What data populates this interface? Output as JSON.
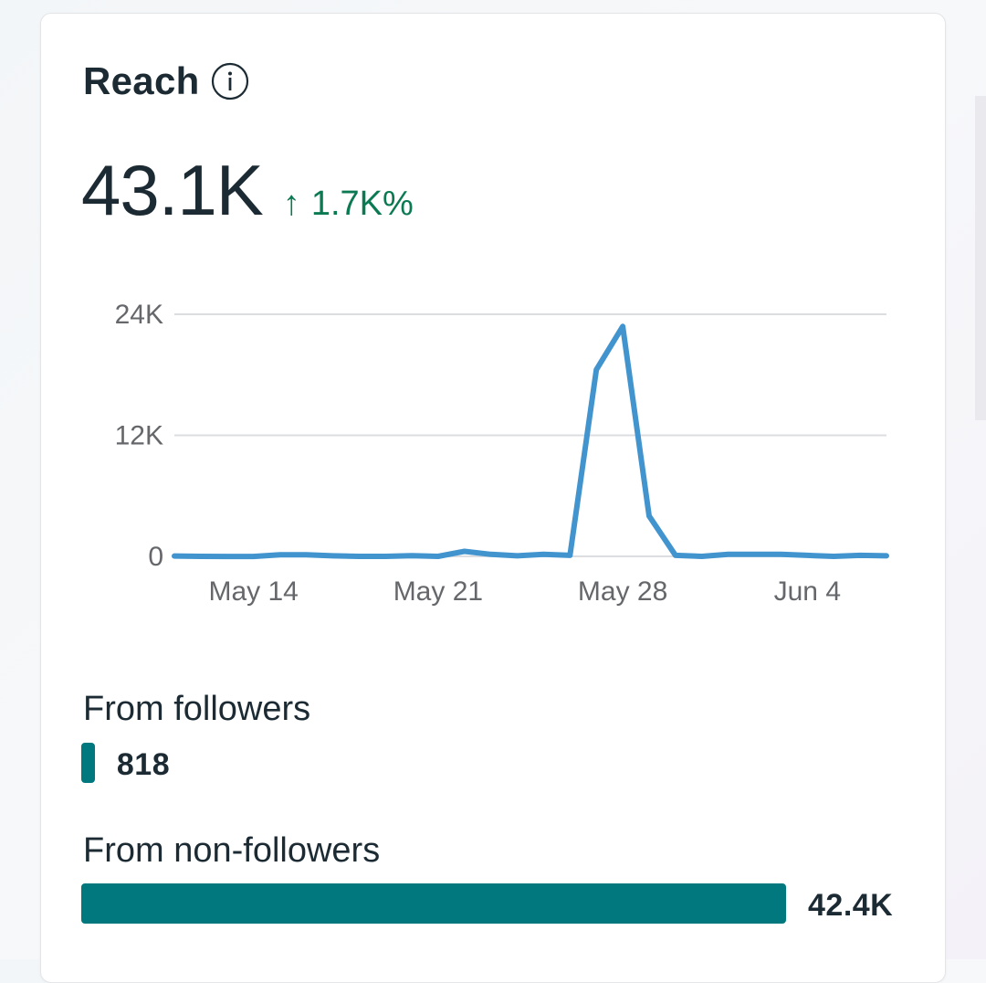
{
  "card": {
    "title": "Reach",
    "total": "43.1K",
    "change_arrow": "↑",
    "change_text": "1.7K%"
  },
  "chart_data": {
    "type": "line",
    "title": "",
    "xlabel": "",
    "ylabel": "",
    "ylim": [
      0,
      24000
    ],
    "y_ticks": [
      "0",
      "12K",
      "24K"
    ],
    "x_ticks": [
      "May 14",
      "May 21",
      "May 28",
      "Jun 4"
    ],
    "x": [
      "May 11",
      "May 12",
      "May 13",
      "May 14",
      "May 15",
      "May 16",
      "May 17",
      "May 18",
      "May 19",
      "May 20",
      "May 21",
      "May 22",
      "May 23",
      "May 24",
      "May 25",
      "May 26",
      "May 27",
      "May 28",
      "May 29",
      "May 30",
      "May 31",
      "Jun 1",
      "Jun 2",
      "Jun 3",
      "Jun 4",
      "Jun 5",
      "Jun 6",
      "Jun 7"
    ],
    "series": [
      {
        "name": "Reach",
        "color": "#4294cf",
        "values": [
          40,
          0,
          -10,
          -10,
          150,
          150,
          50,
          0,
          0,
          60,
          0,
          500,
          200,
          50,
          200,
          100,
          18500,
          22800,
          4000,
          100,
          0,
          200,
          200,
          200,
          100,
          0,
          100,
          50
        ]
      }
    ]
  },
  "breakdown": {
    "followers": {
      "label": "From followers",
      "value": "818",
      "amount": 818
    },
    "non_followers": {
      "label": "From non-followers",
      "value": "42.4K",
      "amount": 42400
    },
    "bar_color": "#00787d"
  }
}
